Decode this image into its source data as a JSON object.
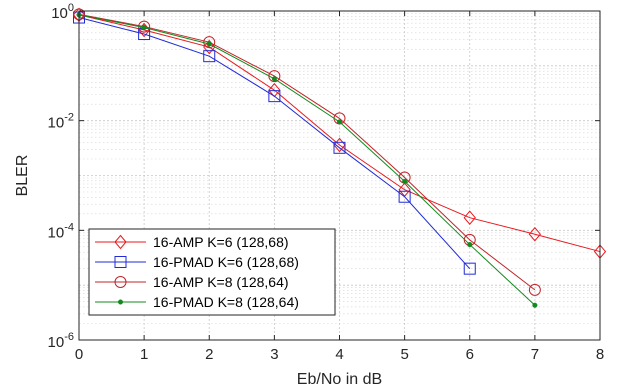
{
  "chart_data": {
    "type": "line",
    "xlabel": "Eb/No in dB",
    "ylabel": "BLER",
    "xlim": [
      0,
      8
    ],
    "ylim": [
      1e-06,
      1
    ],
    "yscale": "log",
    "x_ticks": [
      "0",
      "1",
      "2",
      "3",
      "4",
      "5",
      "6",
      "7",
      "8"
    ],
    "y_ticks": [
      {
        "base": "10",
        "exp": "0"
      },
      {
        "base": "10",
        "exp": "-2"
      },
      {
        "base": "10",
        "exp": "-4"
      },
      {
        "base": "10",
        "exp": "-6"
      }
    ],
    "grid": true,
    "legend_position": "bottom-left",
    "series": [
      {
        "name": "16-AMP K=6 (128,68)",
        "color": "#e8191e",
        "marker": "diamond",
        "x": [
          0,
          1,
          2,
          3,
          4,
          5,
          6,
          7,
          8
        ],
        "y": [
          0.85,
          0.45,
          0.22,
          0.036,
          0.0036,
          0.00055,
          0.00017,
          8.5e-05,
          4.1e-05
        ]
      },
      {
        "name": "16-PMAD K=6 (128,68)",
        "color": "#1f2bd6",
        "marker": "square",
        "x": [
          0,
          1,
          2,
          3,
          4,
          5,
          6
        ],
        "y": [
          0.76,
          0.38,
          0.15,
          0.028,
          0.0032,
          0.00041,
          2e-05
        ]
      },
      {
        "name": "16-AMP K=8 (128,64)",
        "color": "#c0252a",
        "marker": "circle",
        "x": [
          0,
          1,
          2,
          3,
          4,
          5,
          6,
          7
        ],
        "y": [
          0.87,
          0.52,
          0.27,
          0.065,
          0.011,
          0.00092,
          6.7e-05,
          8.2e-06
        ]
      },
      {
        "name": "16-PMAD K=8 (128,64)",
        "color": "#148a1e",
        "marker": "dot",
        "x": [
          0,
          1,
          2,
          3,
          4,
          5,
          6,
          7
        ],
        "y": [
          0.85,
          0.5,
          0.25,
          0.058,
          0.0095,
          0.00078,
          5.5e-05,
          4.3e-06
        ]
      }
    ]
  }
}
